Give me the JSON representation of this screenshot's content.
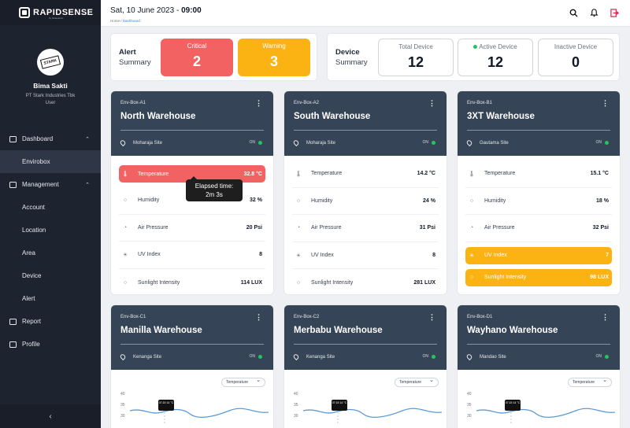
{
  "brand": {
    "name": "RAPIDSENSE",
    "sub": "by Datasenso"
  },
  "user": {
    "name": "Bima Sakti",
    "company": "PT Stark Industries Tbk",
    "role": "User",
    "avatar_text": "STARK"
  },
  "nav": {
    "dashboard": "Dashboard",
    "envirobox": "Envirobox",
    "management": "Management",
    "account": "Account",
    "location": "Location",
    "area": "Area",
    "device": "Device",
    "alert": "Alert",
    "report": "Report",
    "profile": "Profile",
    "collapse": "‹"
  },
  "header": {
    "date": "Sat, 10 June 2023 - ",
    "time": "09:00",
    "crumb_home": "Home",
    "crumb_sep": " / ",
    "crumb_current": "Dashboard"
  },
  "alert_summary": {
    "title": "Alert",
    "subtitle": "Summary",
    "critical_label": "Critical",
    "critical_value": "2",
    "warning_label": "Warning",
    "warning_value": "3"
  },
  "device_summary": {
    "title": "Device",
    "subtitle": "Summary",
    "total_label": "Total Device",
    "total_value": "12",
    "active_label": "Active Device",
    "active_value": "12",
    "inactive_label": "Inactive Device",
    "inactive_value": "0"
  },
  "cards": [
    {
      "id": "Env-Box-A1",
      "name": "North Warehouse",
      "site": "Moharaja Site",
      "status": "ON",
      "rows": [
        {
          "label": "Temperature",
          "value": "32.8 °C",
          "state": "critical"
        },
        {
          "label": "Humidity",
          "value": "32 %"
        },
        {
          "label": "Air Pressure",
          "value": "20 Psi"
        },
        {
          "label": "UV Index",
          "value": "8"
        },
        {
          "label": "Sunlight Intensity",
          "value": "114 LUX"
        }
      ]
    },
    {
      "id": "Env-Box-A2",
      "name": "South Warehouse",
      "site": "Moharaja Site",
      "status": "ON",
      "rows": [
        {
          "label": "Temperature",
          "value": "14.2 °C"
        },
        {
          "label": "Humidity",
          "value": "24 %"
        },
        {
          "label": "Air Pressure",
          "value": "31 Psi"
        },
        {
          "label": "UV Index",
          "value": "8"
        },
        {
          "label": "Sunlight Intensity",
          "value": "281 LUX"
        }
      ]
    },
    {
      "id": "Env-Box-B1",
      "name": "3XT Warehouse",
      "site": "Gautama Site",
      "status": "ON",
      "rows": [
        {
          "label": "Temperature",
          "value": "15.1 °C"
        },
        {
          "label": "Humidity",
          "value": "18 %"
        },
        {
          "label": "Air Pressure",
          "value": "32 Psi"
        },
        {
          "label": "UV Index",
          "value": "7",
          "state": "warning"
        },
        {
          "label": "Sunlight Intensity",
          "value": "98 LUX",
          "state": "warning"
        }
      ]
    }
  ],
  "tooltip": {
    "line1": "Elapsed time:",
    "line2": "2m 3s"
  },
  "bottom_cards": [
    {
      "id": "Env-Box-C1",
      "name": "Manilla Warehouse",
      "site": "Kenanga Site",
      "status": "ON",
      "dropdown": "Temperature",
      "ticks": [
        "40",
        "35",
        "30"
      ],
      "tip": "07:15\n14 °C"
    },
    {
      "id": "Env-Box-C2",
      "name": "Merbabu Warehouse",
      "site": "Kenanga Site",
      "status": "ON",
      "dropdown": "Temperature",
      "ticks": [
        "40",
        "35",
        "30"
      ],
      "tip": "07:15\n14 °C"
    },
    {
      "id": "Env-Box-D1",
      "name": "Wayhano Warehouse",
      "site": "Mandao Site",
      "status": "ON",
      "dropdown": "Temperature",
      "ticks": [
        "40",
        "35",
        "30"
      ],
      "tip": "07:15\n14 °C"
    }
  ],
  "colors": {
    "sidebar": "#1e2330",
    "card_header": "#364457",
    "critical": "#f26262",
    "warning": "#fbb313",
    "online": "#22c55e"
  }
}
